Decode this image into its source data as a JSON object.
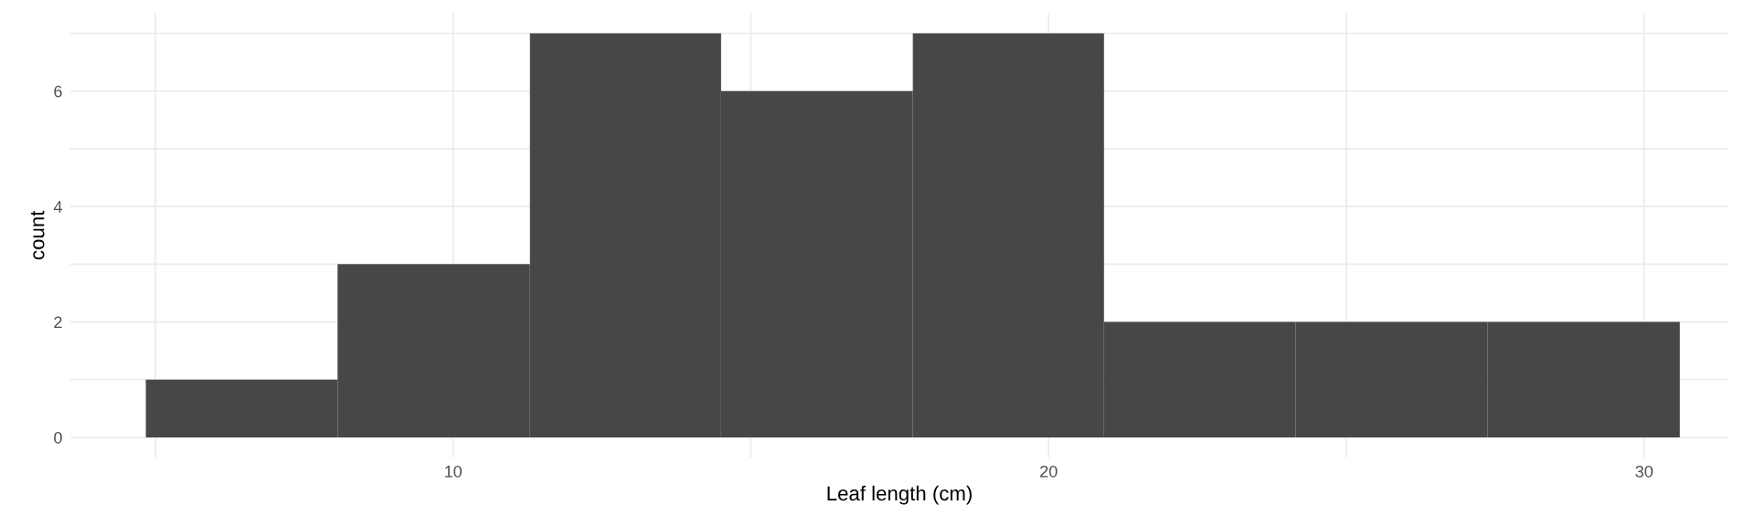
{
  "chart_data": {
    "type": "histogram",
    "xlabel": "Leaf length (cm)",
    "ylabel": "count",
    "bins": [
      4.84,
      8.06,
      11.29,
      14.5,
      17.72,
      20.93,
      24.15,
      27.37,
      30.6
    ],
    "values": [
      1,
      3,
      7,
      6,
      7,
      2,
      2,
      2
    ],
    "color": "#474747",
    "xlim": [
      3.57,
      31.42
    ],
    "ylim": [
      -0.35,
      7.35
    ],
    "xticks": [
      {
        "value": 5,
        "label": null
      },
      10,
      {
        "value": 15,
        "label": null
      },
      20,
      {
        "value": 25,
        "label": null
      },
      30
    ],
    "yticks": [
      0,
      {
        "value": 1,
        "label": null
      },
      2,
      {
        "value": 3,
        "label": null
      },
      4,
      {
        "value": 5,
        "label": null
      },
      6,
      {
        "value": 7,
        "label": null
      }
    ],
    "grid": true
  }
}
